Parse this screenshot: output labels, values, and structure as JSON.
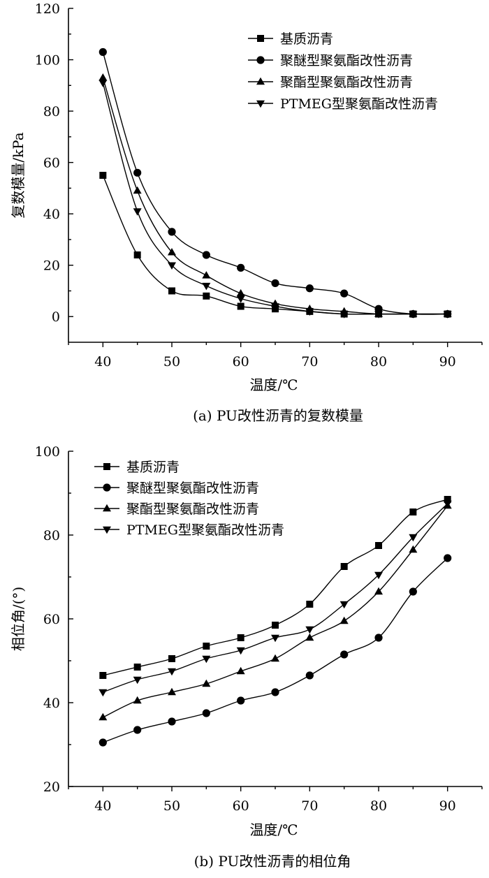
{
  "chart_data": [
    {
      "type": "line",
      "xlabel": "温度/℃",
      "ylabel": "复数模量/kPa",
      "caption": "(a) PU改性沥青的复数模量",
      "xlim": [
        35,
        95
      ],
      "ylim": [
        -10,
        120
      ],
      "xticks": [
        40,
        50,
        60,
        70,
        80,
        90
      ],
      "yticks": [
        0,
        20,
        40,
        60,
        80,
        100,
        120
      ],
      "x": [
        40,
        45,
        50,
        55,
        60,
        65,
        70,
        75,
        80,
        85,
        90
      ],
      "legend_position": "top-right",
      "series": [
        {
          "name": "基质沥青",
          "marker": "square",
          "values": [
            55,
            24,
            10,
            8,
            4,
            3,
            2,
            1,
            1,
            1,
            1
          ]
        },
        {
          "name": "聚醚型聚氨酯改性沥青",
          "marker": "circle",
          "values": [
            103,
            56,
            33,
            24,
            19,
            13,
            11,
            9,
            3,
            1,
            1
          ]
        },
        {
          "name": "聚酯型聚氨酯改性沥青",
          "marker": "triangle-up",
          "values": [
            93,
            49,
            25,
            16,
            9,
            5,
            3,
            2,
            1,
            1,
            1
          ]
        },
        {
          "name": "PTMEG型聚氨酯改性沥青",
          "marker": "triangle-down",
          "values": [
            91,
            41,
            20,
            12,
            7,
            4,
            2,
            1,
            1,
            1,
            1
          ]
        }
      ]
    },
    {
      "type": "line",
      "xlabel": "温度/℃",
      "ylabel": "相位角/(°)",
      "caption": "(b) PU改性沥青的相位角",
      "xlim": [
        35,
        95
      ],
      "ylim": [
        20,
        100
      ],
      "xticks": [
        40,
        50,
        60,
        70,
        80,
        90
      ],
      "yticks": [
        20,
        40,
        60,
        80,
        100
      ],
      "x": [
        40,
        45,
        50,
        55,
        60,
        65,
        70,
        75,
        80,
        85,
        90
      ],
      "legend_position": "top-left",
      "series": [
        {
          "name": "基质沥青",
          "marker": "square",
          "values": [
            46.5,
            48.5,
            50.5,
            53.5,
            55.5,
            58.5,
            63.5,
            72.5,
            77.5,
            85.5,
            88.5
          ]
        },
        {
          "name": "聚醚型聚氨酯改性沥青",
          "marker": "circle",
          "values": [
            30.5,
            33.5,
            35.5,
            37.5,
            40.5,
            42.5,
            46.5,
            51.5,
            55.5,
            66.5,
            74.5
          ]
        },
        {
          "name": "聚酯型聚氨酯改性沥青",
          "marker": "triangle-up",
          "values": [
            36.5,
            40.5,
            42.5,
            44.5,
            47.5,
            50.5,
            55.5,
            59.5,
            66.5,
            76.5,
            87
          ]
        },
        {
          "name": "PTMEG型聚氨酯改性沥青",
          "marker": "triangle-down",
          "values": [
            42.5,
            45.5,
            47.5,
            50.5,
            52.5,
            55.5,
            57.5,
            63.5,
            70.5,
            79.5,
            87.5
          ]
        }
      ]
    }
  ]
}
